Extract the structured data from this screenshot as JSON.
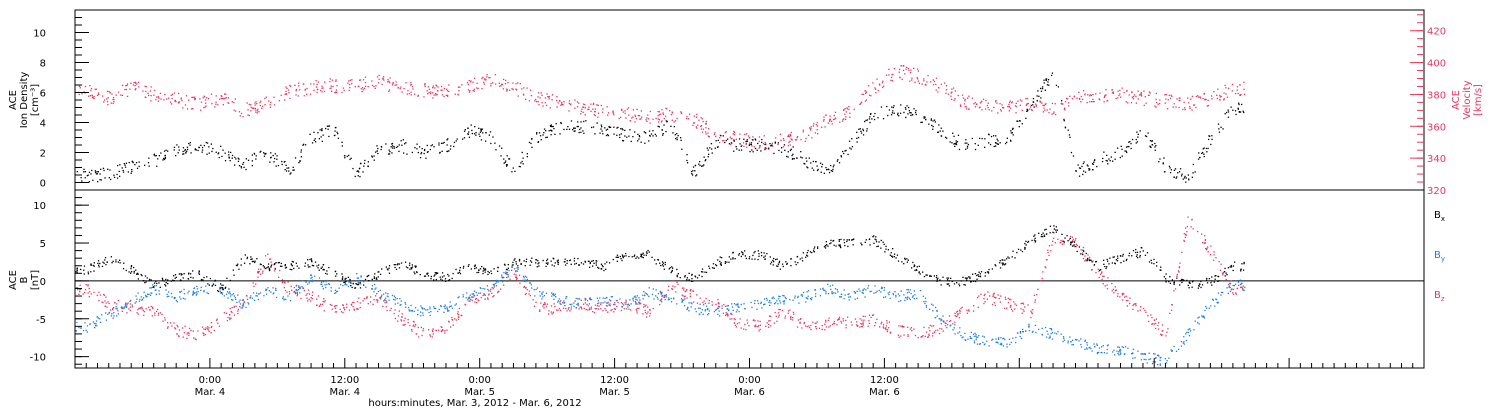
{
  "chart_data": [
    {
      "type": "scatter",
      "panel": "top",
      "ylabel_lines": [
        "ACE",
        "Ion Density",
        "[cm⁻³]"
      ],
      "ylim": [
        -0.5,
        11.5
      ],
      "yticks": [
        0,
        2,
        4,
        6,
        8,
        10
      ],
      "y2label_lines": [
        "ACE",
        "Velocity",
        "[km/s]"
      ],
      "y2lim": [
        320,
        433
      ],
      "y2ticks": [
        320,
        340,
        360,
        380,
        400,
        420
      ],
      "colors": {
        "density": "#000000",
        "velocity": "#e8365f"
      },
      "series": [
        {
          "axis": "left",
          "x_hours": [
            -11,
            -9,
            -7,
            -5,
            -3,
            -1,
            1,
            3,
            5,
            7,
            9,
            11,
            13,
            15,
            17,
            19,
            21,
            23,
            25,
            27,
            29,
            31,
            33,
            35,
            37,
            39,
            41,
            43,
            45,
            47,
            49,
            51,
            53,
            55,
            57,
            59,
            61,
            63,
            65,
            67,
            69,
            71,
            73,
            75,
            77,
            79,
            81,
            83,
            85,
            87,
            89,
            91
          ],
          "values": [
            0.5,
            0.6,
            1.0,
            1.5,
            2.2,
            2.5,
            2.0,
            1.2,
            2.0,
            0.8,
            3.0,
            3.5,
            0.6,
            2.3,
            2.5,
            2.0,
            2.5,
            3.5,
            3.0,
            0.8,
            3.0,
            3.7,
            3.8,
            3.5,
            3.2,
            3.0,
            4.0,
            0.6,
            2.8,
            2.5,
            2.5,
            2.3,
            1.5,
            0.7,
            2.5,
            4.5,
            5.0,
            4.5,
            3.5,
            2.5,
            2.8,
            3.0,
            5.0,
            7.5,
            0.8,
            1.5,
            2.0,
            3.5,
            1.0,
            0.4,
            3.0,
            5.0
          ]
        },
        {
          "axis": "right",
          "x_hours": [
            -11,
            -9,
            -7,
            -5,
            -3,
            -1,
            1,
            3,
            5,
            7,
            9,
            11,
            13,
            15,
            17,
            19,
            21,
            23,
            25,
            27,
            29,
            31,
            33,
            35,
            37,
            39,
            41,
            43,
            45,
            47,
            49,
            51,
            53,
            55,
            57,
            59,
            61,
            63,
            65,
            67,
            69,
            71,
            73,
            75,
            77,
            79,
            81,
            83,
            85,
            87,
            89,
            91
          ],
          "values": [
            382,
            378,
            385,
            380,
            377,
            374,
            378,
            370,
            375,
            382,
            385,
            386,
            386,
            388,
            385,
            383,
            382,
            386,
            390,
            385,
            378,
            375,
            372,
            370,
            368,
            366,
            368,
            365,
            355,
            352,
            350,
            352,
            355,
            365,
            370,
            385,
            395,
            392,
            385,
            376,
            373,
            372,
            375,
            370,
            378,
            380,
            380,
            378,
            376,
            374,
            378,
            384
          ]
        }
      ]
    },
    {
      "type": "scatter",
      "panel": "bottom",
      "ylabel_lines": [
        "ACE",
        "B",
        "[nT]"
      ],
      "ylim": [
        -11.5,
        12
      ],
      "yticks": [
        -10,
        -5,
        0,
        5,
        10
      ],
      "zero_line": true,
      "series": [
        {
          "name": "Bx",
          "label": "B",
          "subscript": "x",
          "color": "#000000",
          "x_hours": [
            -11,
            -9,
            -7,
            -5,
            -3,
            -1,
            1,
            3,
            5,
            7,
            9,
            11,
            13,
            15,
            17,
            19,
            21,
            23,
            25,
            27,
            29,
            31,
            33,
            35,
            37,
            39,
            41,
            43,
            45,
            47,
            49,
            51,
            53,
            55,
            57,
            59,
            61,
            63,
            65,
            67,
            69,
            71,
            73,
            75,
            77,
            79,
            81,
            83,
            85,
            87,
            89,
            91
          ],
          "values": [
            1.5,
            3.0,
            1.5,
            -0.5,
            0.5,
            1.0,
            -1.0,
            3.0,
            2.0,
            2.0,
            2.5,
            1.0,
            -0.5,
            1.0,
            2.5,
            1.0,
            0.5,
            2.0,
            1.0,
            2.5,
            2.5,
            2.5,
            2.5,
            2.0,
            3.5,
            3.5,
            1.5,
            0.5,
            2.5,
            3.5,
            3.5,
            2.0,
            3.5,
            5.0,
            5.0,
            5.5,
            3.5,
            1.5,
            0.0,
            0.0,
            1.0,
            3.0,
            5.5,
            7.0,
            4.5,
            2.0,
            3.0,
            4.0,
            0.5,
            -0.5,
            0.0,
            2.0
          ]
        },
        {
          "name": "By",
          "label": "B",
          "subscript": "y",
          "color": "#1f7fe0",
          "x_hours": [
            -11,
            -9,
            -7,
            -5,
            -3,
            -1,
            1,
            3,
            5,
            7,
            9,
            11,
            13,
            15,
            17,
            19,
            21,
            23,
            25,
            27,
            29,
            31,
            33,
            35,
            37,
            39,
            41,
            43,
            45,
            47,
            49,
            51,
            53,
            55,
            57,
            59,
            61,
            63,
            65,
            67,
            69,
            71,
            73,
            75,
            77,
            79,
            81,
            83,
            85,
            87,
            89,
            91
          ],
          "values": [
            -6.0,
            -4.5,
            -2.5,
            -1.0,
            -2.0,
            -1.0,
            -1.0,
            -3.0,
            -1.0,
            -2.0,
            0.5,
            -1.0,
            0.5,
            -1.5,
            -3.0,
            -4.0,
            -3.5,
            -2.0,
            -1.0,
            2.0,
            -1.5,
            -2.5,
            -3.0,
            -2.5,
            -3.0,
            -1.5,
            -2.0,
            -3.5,
            -4.0,
            -3.5,
            -3.0,
            -2.5,
            -2.0,
            -1.0,
            -2.0,
            -1.0,
            -2.0,
            -1.5,
            -5.0,
            -7.0,
            -8.0,
            -8.0,
            -6.0,
            -7.0,
            -8.0,
            -9.0,
            -9.0,
            -10.0,
            -10.5,
            -7.0,
            -3.0,
            -0.5
          ]
        },
        {
          "name": "Bz",
          "label": "B",
          "subscript": "z",
          "color": "#e8365f",
          "x_hours": [
            -11,
            -9,
            -7,
            -5,
            -3,
            -1,
            1,
            3,
            5,
            7,
            9,
            11,
            13,
            15,
            17,
            19,
            21,
            23,
            25,
            27,
            29,
            31,
            33,
            35,
            37,
            39,
            41,
            43,
            45,
            47,
            49,
            51,
            53,
            55,
            57,
            59,
            61,
            63,
            65,
            67,
            69,
            71,
            73,
            75,
            77,
            79,
            81,
            83,
            85,
            87,
            89,
            91
          ],
          "values": [
            -1.0,
            -3.0,
            -3.5,
            -4.0,
            -6.5,
            -7.0,
            -5.0,
            -3.0,
            3.0,
            -1.0,
            -2.0,
            -4.0,
            -3.0,
            -2.0,
            -5.0,
            -7.0,
            -6.0,
            -3.0,
            -1.5,
            1.5,
            -3.5,
            -3.5,
            -3.0,
            -3.5,
            -3.0,
            -4.0,
            -0.5,
            -2.0,
            -3.0,
            -5.5,
            -6.0,
            -4.0,
            -6.0,
            -5.5,
            -5.5,
            -5.0,
            -6.5,
            -7.0,
            -6.0,
            -4.0,
            -2.0,
            -3.0,
            -4.0,
            6.0,
            5.0,
            1.0,
            -2.0,
            -4.0,
            -7.0,
            8.5,
            4.0,
            -1.0
          ]
        }
      ]
    }
  ],
  "x_axis": {
    "range_hours": [
      -12,
      108
    ],
    "ticks": [
      {
        "h": 0,
        "time": "0:00",
        "date": "Mar. 4"
      },
      {
        "h": 12,
        "time": "12:00",
        "date": "Mar. 4"
      },
      {
        "h": 24,
        "time": "0:00",
        "date": "Mar. 5"
      },
      {
        "h": 36,
        "time": "12:00",
        "date": "Mar. 5"
      },
      {
        "h": 48,
        "time": "0:00",
        "date": "Mar. 6"
      },
      {
        "h": 60,
        "time": "12:00",
        "date": "Mar. 6"
      }
    ],
    "title": "hours:minutes, Mar.  3, 2012 - Mar.  6, 2012"
  }
}
